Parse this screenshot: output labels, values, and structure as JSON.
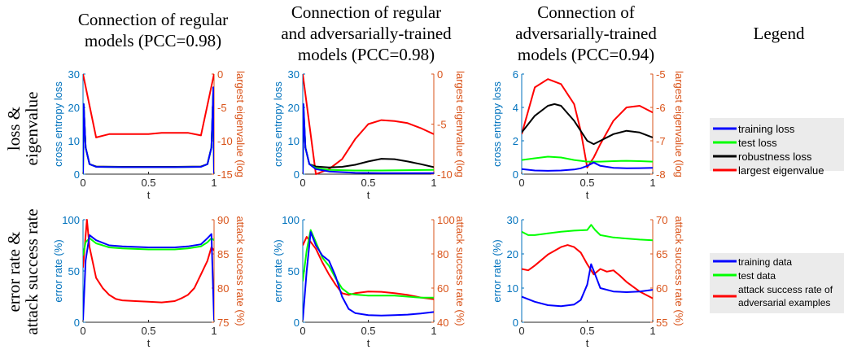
{
  "column_titles": [
    [
      "Connection of regular",
      "models (PCC=0.98)"
    ],
    [
      "Connection of regular",
      "and adversarially-trained",
      "models (PCC=0.98)"
    ],
    [
      "Connection of",
      "adversarially-trained",
      "models (PCC=0.94)"
    ],
    [
      "Legend"
    ]
  ],
  "row_labels": [
    [
      "loss &",
      "eigenvalue"
    ],
    [
      "error rate &",
      "attack success rate"
    ]
  ],
  "colors": {
    "left_axis": "#0072BD",
    "right_axis": "#D95319",
    "training": "#0000FF",
    "test": "#00FF00",
    "robustness": "#000000",
    "eigen_attack": "#FF0000",
    "legend_bg": "#EBEBEB"
  },
  "legends": {
    "top": [
      "training loss",
      "test loss",
      "robustness loss",
      "largest eigenvalue"
    ],
    "bottom": [
      "training data",
      "test data",
      "attack success rate of",
      "adversarial examples"
    ]
  },
  "chart_data": [
    {
      "type": "line",
      "xlabel": "t",
      "xlim": [
        0,
        1
      ],
      "xticks": [
        "0",
        "0.5",
        "1"
      ],
      "ylabel": "cross entropy loss",
      "ylim": [
        0,
        30
      ],
      "yticks": [
        "0",
        "10",
        "20",
        "30"
      ],
      "ylabel_right": "largest eigenvalue (log",
      "ylim_right": [
        -15,
        0
      ],
      "yticks_right": [
        "-15",
        "-10",
        "-5",
        "0"
      ],
      "series": [
        {
          "key": "training",
          "axis": "left",
          "x": [
            0,
            0.005,
            0.02,
            0.05,
            0.1,
            0.3,
            0.5,
            0.7,
            0.9,
            0.95,
            0.98,
            0.995,
            1
          ],
          "y": [
            0.2,
            21,
            8,
            3,
            2.2,
            2.1,
            2.1,
            2.1,
            2.2,
            3,
            8,
            26,
            0.2
          ]
        },
        {
          "key": "test",
          "axis": "left",
          "x": [
            0,
            0.005,
            0.02,
            0.05,
            0.1,
            0.3,
            0.5,
            0.7,
            0.9,
            0.95,
            0.98,
            0.995,
            1
          ],
          "y": [
            0.2,
            21,
            8,
            3,
            2.2,
            2.1,
            2.1,
            2.1,
            2.2,
            3,
            8,
            26,
            0.2
          ]
        },
        {
          "key": "robustness",
          "axis": "left",
          "x": [
            0,
            0.005,
            0.02,
            0.05,
            0.1,
            0.3,
            0.5,
            0.7,
            0.9,
            0.95,
            0.98,
            0.995,
            1
          ],
          "y": [
            0.2,
            21,
            8,
            3,
            2.3,
            2.2,
            2.2,
            2.2,
            2.3,
            3,
            8,
            26,
            0.2
          ]
        },
        {
          "key": "eigen_attack",
          "axis": "right",
          "x": [
            0,
            0.1,
            0.2,
            0.3,
            0.4,
            0.5,
            0.6,
            0.7,
            0.8,
            0.9,
            1
          ],
          "y": [
            0,
            -9.5,
            -9,
            -9,
            -9,
            -9,
            -8.8,
            -8.8,
            -8.8,
            -9.2,
            0
          ]
        }
      ]
    },
    {
      "type": "line",
      "xlabel": "t",
      "xlim": [
        0,
        1
      ],
      "xticks": [
        "0",
        "0.5",
        "1"
      ],
      "ylabel": "cross entropy loss",
      "ylim": [
        0,
        30
      ],
      "yticks": [
        "0",
        "10",
        "20",
        "30"
      ],
      "ylabel_right": "largest eigenvalue (log",
      "ylim_right": [
        -10,
        0
      ],
      "yticks_right": [
        "-10",
        "-5",
        "0"
      ],
      "series": [
        {
          "key": "training",
          "axis": "left",
          "x": [
            0,
            0.005,
            0.02,
            0.05,
            0.1,
            0.2,
            0.4,
            0.6,
            0.8,
            1
          ],
          "y": [
            0.2,
            21,
            8,
            3,
            1.5,
            0.8,
            0.4,
            0.3,
            0.3,
            0.3
          ]
        },
        {
          "key": "test",
          "axis": "left",
          "x": [
            0,
            0.005,
            0.02,
            0.05,
            0.1,
            0.2,
            0.4,
            0.6,
            0.8,
            1
          ],
          "y": [
            0.3,
            21,
            8,
            3,
            1.8,
            1.3,
            1.1,
            1.1,
            1.2,
            1.3
          ]
        },
        {
          "key": "robustness",
          "axis": "left",
          "x": [
            0,
            0.005,
            0.02,
            0.05,
            0.1,
            0.2,
            0.3,
            0.4,
            0.5,
            0.6,
            0.7,
            0.8,
            0.9,
            1
          ],
          "y": [
            0.2,
            20,
            8,
            3,
            2.3,
            2,
            2.2,
            2.8,
            3.8,
            4.6,
            4.5,
            3.8,
            3,
            2.1
          ]
        },
        {
          "key": "eigen_attack",
          "axis": "right",
          "x": [
            0,
            0.1,
            0.2,
            0.3,
            0.4,
            0.5,
            0.6,
            0.7,
            0.8,
            0.9,
            1
          ],
          "y": [
            0,
            -10,
            -9.5,
            -8.5,
            -6.5,
            -5,
            -4.6,
            -4.7,
            -4.9,
            -5.4,
            -6
          ]
        }
      ]
    },
    {
      "type": "line",
      "xlabel": "t",
      "xlim": [
        0,
        1
      ],
      "xticks": [
        "0",
        "0.5",
        "1"
      ],
      "ylabel": "cross entropy loss",
      "ylim": [
        0,
        6
      ],
      "yticks": [
        "0",
        "2",
        "4",
        "6"
      ],
      "ylabel_right": "largest eigenvalue (log",
      "ylim_right": [
        -8,
        -5
      ],
      "yticks_right": [
        "-8",
        "-7",
        "-6",
        "-5"
      ],
      "series": [
        {
          "key": "training",
          "axis": "left",
          "x": [
            0,
            0.1,
            0.2,
            0.3,
            0.4,
            0.45,
            0.5,
            0.55,
            0.6,
            0.7,
            0.8,
            0.9,
            1
          ],
          "y": [
            0.3,
            0.22,
            0.2,
            0.22,
            0.28,
            0.35,
            0.5,
            0.7,
            0.5,
            0.38,
            0.35,
            0.36,
            0.38
          ]
        },
        {
          "key": "test",
          "axis": "left",
          "x": [
            0,
            0.1,
            0.2,
            0.3,
            0.4,
            0.5,
            0.6,
            0.7,
            0.8,
            0.9,
            1
          ],
          "y": [
            0.85,
            0.95,
            1.05,
            1.0,
            0.85,
            0.75,
            0.75,
            0.78,
            0.8,
            0.78,
            0.75
          ]
        },
        {
          "key": "robustness",
          "axis": "left",
          "x": [
            0,
            0.1,
            0.2,
            0.25,
            0.3,
            0.4,
            0.5,
            0.55,
            0.6,
            0.7,
            0.8,
            0.9,
            1
          ],
          "y": [
            2.5,
            3.5,
            4.1,
            4.2,
            4.1,
            3.2,
            2.0,
            1.8,
            2.0,
            2.4,
            2.6,
            2.5,
            2.2
          ]
        },
        {
          "key": "eigen_attack",
          "axis": "right",
          "x": [
            0,
            0.1,
            0.2,
            0.3,
            0.4,
            0.45,
            0.5,
            0.55,
            0.6,
            0.7,
            0.8,
            0.9,
            1
          ],
          "y": [
            -6.8,
            -5.4,
            -5.15,
            -5.3,
            -5.9,
            -6.7,
            -7.8,
            -7.5,
            -7.1,
            -6.4,
            -6.0,
            -5.95,
            -6.15
          ]
        }
      ]
    },
    {
      "type": "line",
      "xlabel": "t",
      "xlim": [
        0,
        1
      ],
      "xticks": [
        "0",
        "0.5",
        "1"
      ],
      "ylabel": "error rate (%)",
      "ylim": [
        0,
        100
      ],
      "yticks": [
        "0",
        "50",
        "100"
      ],
      "ylabel_right": "attack success rate (%)",
      "ylim_right": [
        75,
        90
      ],
      "yticks_right": [
        "75",
        "80",
        "85",
        "90"
      ],
      "series": [
        {
          "key": "training",
          "axis": "left",
          "x": [
            0,
            0.02,
            0.05,
            0.1,
            0.2,
            0.3,
            0.5,
            0.7,
            0.8,
            0.9,
            0.95,
            0.98,
            1
          ],
          "y": [
            2,
            60,
            85,
            80,
            75,
            74,
            73,
            73,
            74,
            76,
            82,
            86,
            2
          ]
        },
        {
          "key": "test",
          "axis": "left",
          "x": [
            0,
            0.02,
            0.05,
            0.1,
            0.2,
            0.3,
            0.5,
            0.7,
            0.8,
            0.9,
            0.95,
            0.98,
            1
          ],
          "y": [
            65,
            78,
            82,
            77,
            73,
            72,
            71,
            71,
            72,
            74,
            78,
            82,
            80
          ]
        },
        {
          "key": "eigen_attack",
          "axis": "right",
          "x": [
            0,
            0.03,
            0.05,
            0.1,
            0.15,
            0.2,
            0.25,
            0.3,
            0.4,
            0.5,
            0.6,
            0.7,
            0.75,
            0.8,
            0.85,
            0.9,
            0.95,
            0.98,
            1
          ],
          "y": [
            83,
            90,
            86,
            81.5,
            80,
            79,
            78.4,
            78.2,
            78.1,
            78,
            77.9,
            78.1,
            78.5,
            79,
            80,
            82,
            84,
            86,
            85.5
          ]
        }
      ]
    },
    {
      "type": "line",
      "xlabel": "t",
      "xlim": [
        0,
        1
      ],
      "xticks": [
        "0",
        "0.5",
        "1"
      ],
      "ylabel": "error rate (%)",
      "ylim": [
        0,
        100
      ],
      "yticks": [
        "0",
        "50",
        "100"
      ],
      "ylabel_right": "attack success rate (%)",
      "ylim_right": [
        40,
        100
      ],
      "yticks_right": [
        "40",
        "60",
        "80",
        "100"
      ],
      "series": [
        {
          "key": "training",
          "axis": "left",
          "x": [
            0,
            0.03,
            0.06,
            0.1,
            0.15,
            0.2,
            0.25,
            0.3,
            0.35,
            0.4,
            0.5,
            0.6,
            0.7,
            0.8,
            0.9,
            1
          ],
          "y": [
            2,
            50,
            88,
            75,
            65,
            60,
            45,
            25,
            13,
            9,
            7,
            6.5,
            7,
            7.5,
            8.5,
            10
          ]
        },
        {
          "key": "test",
          "axis": "left",
          "x": [
            0,
            0.03,
            0.06,
            0.1,
            0.15,
            0.2,
            0.25,
            0.3,
            0.35,
            0.4,
            0.5,
            0.6,
            0.7,
            0.8,
            0.9,
            1
          ],
          "y": [
            40,
            70,
            90,
            78,
            63,
            55,
            43,
            33,
            28,
            27,
            26,
            26,
            26,
            25,
            24,
            24
          ]
        },
        {
          "key": "eigen_attack",
          "axis": "right",
          "x": [
            0,
            0.03,
            0.06,
            0.1,
            0.15,
            0.2,
            0.25,
            0.3,
            0.35,
            0.4,
            0.5,
            0.6,
            0.7,
            0.8,
            0.9,
            1
          ],
          "y": [
            85,
            90,
            87,
            83,
            75,
            68,
            62,
            57,
            56,
            57,
            58,
            57.8,
            57,
            56,
            54.5,
            53.5
          ]
        }
      ]
    },
    {
      "type": "line",
      "xlabel": "t",
      "xlim": [
        0,
        1
      ],
      "xticks": [
        "0",
        "0.5",
        "1"
      ],
      "ylabel": "error rate (%)",
      "ylim": [
        0,
        30
      ],
      "yticks": [
        "0",
        "10",
        "20",
        "30"
      ],
      "ylabel_right": "attack success rate (%)",
      "ylim_right": [
        55,
        70
      ],
      "yticks_right": [
        "55",
        "60",
        "65",
        "70"
      ],
      "series": [
        {
          "key": "training",
          "axis": "left",
          "x": [
            0,
            0.1,
            0.2,
            0.3,
            0.4,
            0.45,
            0.5,
            0.53,
            0.56,
            0.6,
            0.7,
            0.8,
            0.9,
            1
          ],
          "y": [
            7.5,
            6,
            5,
            4.7,
            5.2,
            6.5,
            11,
            17,
            14,
            10,
            9,
            8.8,
            9,
            9.5
          ]
        },
        {
          "key": "test",
          "axis": "left",
          "x": [
            0,
            0.05,
            0.1,
            0.2,
            0.3,
            0.4,
            0.5,
            0.53,
            0.56,
            0.6,
            0.7,
            0.8,
            0.9,
            1
          ],
          "y": [
            26.5,
            25.5,
            25.5,
            26,
            26.5,
            26.8,
            27,
            28.5,
            27,
            25.5,
            24.8,
            24.5,
            24.2,
            24
          ]
        },
        {
          "key": "eigen_attack",
          "axis": "right",
          "x": [
            0,
            0.05,
            0.1,
            0.2,
            0.3,
            0.35,
            0.4,
            0.45,
            0.5,
            0.55,
            0.6,
            0.65,
            0.7,
            0.75,
            0.8,
            0.9,
            1
          ],
          "y": [
            62.8,
            62.6,
            63.3,
            64.9,
            66,
            66.3,
            66,
            65.2,
            63.5,
            62,
            62.8,
            62.4,
            62.6,
            61.8,
            60.9,
            59.5,
            58.5
          ]
        }
      ]
    }
  ]
}
